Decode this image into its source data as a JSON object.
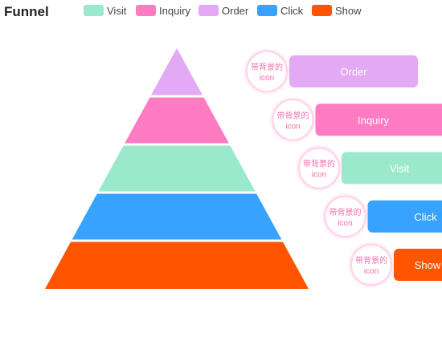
{
  "chart_data": {
    "type": "funnel",
    "title": "Funnel",
    "legend": {
      "placement": "top",
      "items": [
        {
          "name": "Visit",
          "color": "#9be9cd"
        },
        {
          "name": "Inquiry",
          "color": "#ff7bc2"
        },
        {
          "name": "Order",
          "color": "#e4a9f5"
        },
        {
          "name": "Click",
          "color": "#37a2ff"
        },
        {
          "name": "Show",
          "color": "#ff5500"
        }
      ]
    },
    "series": [
      {
        "name": "Order",
        "value": 20,
        "color": "#e4a9f5"
      },
      {
        "name": "Inquiry",
        "value": 40,
        "color": "#ff7bc2"
      },
      {
        "name": "Visit",
        "value": 60,
        "color": "#9be9cd"
      },
      {
        "name": "Click",
        "value": 80,
        "color": "#37a2ff"
      },
      {
        "name": "Show",
        "value": 100,
        "color": "#ff5500"
      }
    ],
    "icon_label_line1": "带背景的",
    "icon_label_line2": "icon"
  }
}
